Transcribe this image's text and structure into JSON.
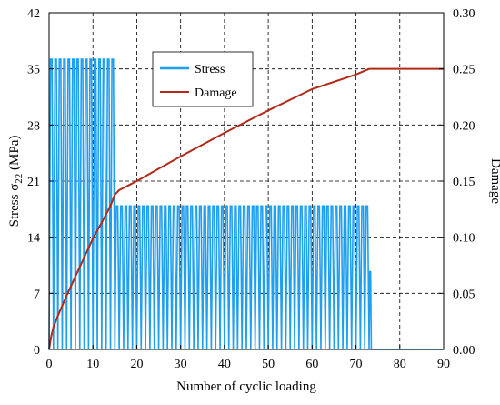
{
  "chart_data": {
    "type": "line",
    "xlabel": "Number of cyclic loading",
    "ylabel_left_prefix": "Stress σ",
    "ylabel_left_sub": "22",
    "ylabel_left_suffix": " (MPa)",
    "ylabel_right": "Damage",
    "xlim": [
      0,
      90
    ],
    "ylim_left": [
      0,
      42
    ],
    "ylim_right": [
      0,
      0.3
    ],
    "x_ticks": [
      "0",
      "10",
      "20",
      "30",
      "40",
      "50",
      "60",
      "70",
      "80",
      "90"
    ],
    "y_left_ticks": [
      "0",
      "7",
      "14",
      "21",
      "28",
      "35",
      "42"
    ],
    "y_right_ticks": [
      "0.00",
      "0.05",
      "0.10",
      "0.15",
      "0.20",
      "0.25",
      "0.30"
    ],
    "grid": true,
    "legend_position": "top-center",
    "series": [
      {
        "name": "Stress",
        "axis": "left",
        "color": "#1E9FF0",
        "cycles": [
          {
            "from": 0,
            "to": 15,
            "peak": 36.2
          },
          {
            "from": 15,
            "to": 73,
            "peak": 17.9
          },
          {
            "from": 73,
            "to": 73.5,
            "peak": 9.7
          }
        ],
        "after_failure": {
          "from": 73.5,
          "to": 90,
          "value": 0
        }
      },
      {
        "name": "Damage",
        "axis": "right",
        "color": "#B22A1A",
        "x": [
          0,
          0.5,
          1,
          2,
          4,
          6,
          8,
          10,
          12,
          14,
          15,
          16,
          18,
          20,
          25,
          30,
          40,
          50,
          60,
          70,
          73,
          73.5,
          90
        ],
        "y": [
          0,
          0.012,
          0.02,
          0.03,
          0.048,
          0.065,
          0.082,
          0.099,
          0.113,
          0.128,
          0.138,
          0.142,
          0.146,
          0.15,
          0.161,
          0.172,
          0.193,
          0.213,
          0.232,
          0.245,
          0.25,
          0.25,
          0.25
        ]
      }
    ]
  }
}
